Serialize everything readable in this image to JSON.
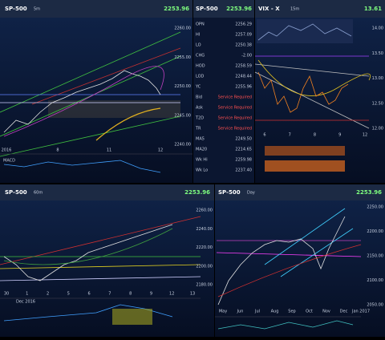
{
  "panels": {
    "top_left": {
      "symbol": "SP-500",
      "interval": "5m",
      "price": "2253.96",
      "y_labels": [
        "2260.00",
        "2255.00",
        "2250.00",
        "2245.00",
        "2240.00"
      ],
      "x_labels": [
        "2016",
        "8",
        "11",
        "12"
      ],
      "indicator": "MACD"
    },
    "top_right": {
      "symbol": "VIX - X",
      "interval": "15m",
      "price": "13.61",
      "y_labels": [
        "14.00",
        "13.50",
        "13.00",
        "12.50",
        "12.00"
      ],
      "x_labels": [
        "6",
        "7",
        "8",
        "9",
        "12"
      ]
    },
    "bottom_left": {
      "symbol": "SP-500",
      "interval": "60m",
      "price": "2253.96",
      "y_labels": [
        "2260.00",
        "2240.00",
        "2220.00",
        "2200.00",
        "2180.00"
      ],
      "x_labels": [
        "30",
        "1",
        "2",
        "5",
        "6",
        "7",
        "8",
        "9",
        "12",
        "13"
      ],
      "date_label": "Dec 2016"
    },
    "bottom_right": {
      "symbol": "SP-500",
      "interval": "Day",
      "price": "2253.96",
      "y_labels": [
        "2250.00",
        "2200.00",
        "2150.00",
        "2100.00",
        "2050.00"
      ],
      "x_labels": [
        "May",
        "Jun",
        "Jul",
        "Aug",
        "Sep",
        "Oct",
        "Nov",
        "Dec",
        "Jan 2017"
      ]
    }
  },
  "quote_list": {
    "symbol": "SP-500",
    "price": "2253.96",
    "rows": [
      [
        "OPN",
        "2256.29"
      ],
      [
        "HI",
        "2257.09"
      ],
      [
        "LO",
        "2250.38"
      ],
      [
        "CHG",
        "-2.00"
      ],
      [
        "HOD",
        "2258.59"
      ],
      [
        "LOD",
        "2248.44"
      ],
      [
        "YC",
        "2255.96"
      ],
      [
        "Bid",
        "Service Required"
      ],
      [
        "Ask",
        "Service Required"
      ],
      [
        "T2D",
        "Service Required"
      ],
      [
        "TR",
        "Service Required"
      ],
      [
        "MA5",
        "2249.50"
      ],
      [
        "MA20",
        "2214.65"
      ],
      [
        "Wk Hi",
        "2259.98"
      ],
      [
        "Wk Lo",
        "2237.40"
      ]
    ]
  }
}
